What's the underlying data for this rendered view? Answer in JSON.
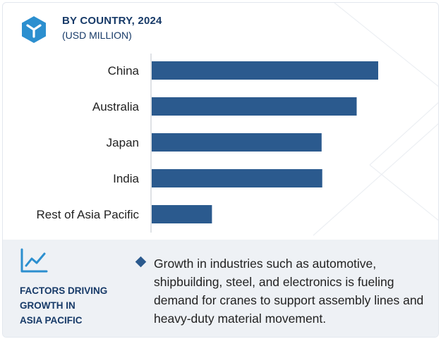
{
  "header": {
    "title": "BY COUNTRY, 2024",
    "subtitle": "(USD MILLION)",
    "icon": "cube-icon"
  },
  "colors": {
    "bar": "#2b5a8e",
    "heading": "#173a68",
    "panel": "#eef1f5"
  },
  "chart_data": {
    "type": "bar",
    "orientation": "horizontal",
    "categories": [
      "China",
      "Australia",
      "Japan",
      "India",
      "Rest of Asia Pacific"
    ],
    "values": [
      100,
      90.5,
      75,
      75.3,
      26.6
    ],
    "value_axis_labels": false,
    "grid": false,
    "legend": "none"
  },
  "factors": {
    "icon": "trend-line-icon",
    "heading_lines": [
      "FACTORS DRIVING",
      "GROWTH IN",
      "ASIA PACIFIC"
    ],
    "bullet_icon": "diamond-bullet-icon",
    "text": "Growth in industries such as automotive, shipbuilding, steel, and electronics is fueling demand for cranes to support assembly lines and heavy-duty material movement."
  }
}
